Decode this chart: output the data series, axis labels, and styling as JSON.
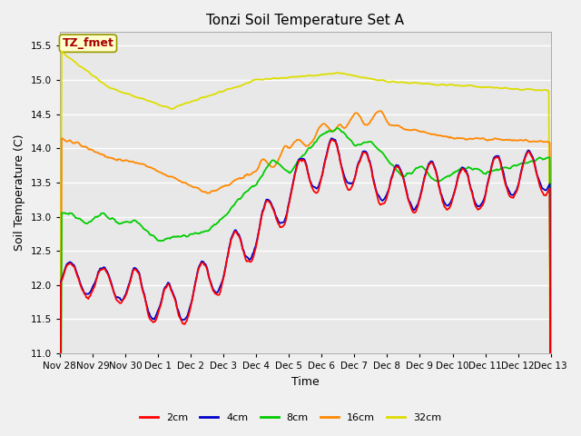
{
  "title": "Tonzi Soil Temperature Set A",
  "xlabel": "Time",
  "ylabel": "Soil Temperature (C)",
  "ylim": [
    11.0,
    15.7
  ],
  "yticks": [
    11.0,
    11.5,
    12.0,
    12.5,
    13.0,
    13.5,
    14.0,
    14.5,
    15.0,
    15.5
  ],
  "colors": {
    "2cm": "#ff0000",
    "4cm": "#0000cc",
    "8cm": "#00cc00",
    "16cm": "#ff8800",
    "32cm": "#dddd00"
  },
  "annotation_text": "TZ_fmet",
  "annotation_color": "#aa0000",
  "annotation_bg": "#ffffcc",
  "annotation_border": "#999900",
  "fig_bg": "#f0f0f0",
  "plot_bg": "#e8e8e8",
  "grid_color": "#ffffff",
  "x_tick_labels": [
    "Nov 28",
    "Nov 29",
    "Nov 30",
    "Dec 1",
    "Dec 2",
    "Dec 3",
    "Dec 4",
    "Dec 5",
    "Dec 6",
    "Dec 7",
    "Dec 8",
    "Dec 9",
    "Dec 10",
    "Dec 11",
    "Dec 12",
    "Dec 13"
  ],
  "title_fontsize": 11,
  "axis_label_fontsize": 9,
  "tick_fontsize": 7.5,
  "legend_fontsize": 8,
  "linewidth": 1.3
}
